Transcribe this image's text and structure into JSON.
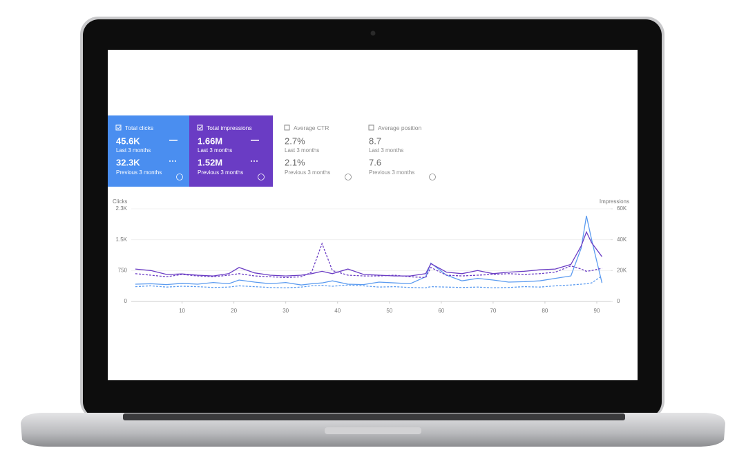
{
  "cards": [
    {
      "label": "Total clicks",
      "current": "45.6K",
      "current_label": "Last 3 months",
      "previous": "32.3K",
      "previous_label": "Previous 3 months"
    },
    {
      "label": "Total impressions",
      "current": "1.66M",
      "current_label": "Last 3 months",
      "previous": "1.52M",
      "previous_label": "Previous 3 months"
    },
    {
      "label": "Average CTR",
      "current": "2.7%",
      "current_label": "Last 3 months",
      "previous": "2.1%",
      "previous_label": "Previous 3 months"
    },
    {
      "label": "Average position",
      "current": "8.7",
      "current_label": "Last 3 months",
      "previous": "7.6",
      "previous_label": "Previous 3 months"
    }
  ],
  "chart_data": {
    "type": "line",
    "y_label": "Clicks",
    "y2_label": "Impressions",
    "x": [
      1,
      4,
      7,
      10,
      13,
      16,
      19,
      21,
      24,
      27,
      30,
      33,
      35,
      37,
      39,
      42,
      45,
      48,
      51,
      54,
      57,
      58,
      61,
      64,
      67,
      70,
      73,
      76,
      79,
      82,
      85,
      87,
      88,
      89,
      91
    ],
    "xlim": [
      1,
      92
    ],
    "xticks": [
      10,
      20,
      30,
      40,
      50,
      60,
      70,
      80,
      90
    ],
    "ylim": [
      0,
      2250
    ],
    "yticks": [
      0,
      750,
      {
        "value": 1500,
        "label": "1.5K"
      },
      {
        "value": 2250,
        "label": "2.3K"
      }
    ],
    "y2lim": [
      0,
      60000
    ],
    "y2ticks": [
      0,
      {
        "value": 20000,
        "label": "20K"
      },
      {
        "value": 40000,
        "label": "40K"
      },
      {
        "value": 60000,
        "label": "60K"
      }
    ],
    "grid": true,
    "series": [
      {
        "color": "#5b9bf0",
        "dashed": false,
        "values": [
          420,
          430,
          410,
          440,
          420,
          460,
          430,
          520,
          470,
          430,
          460,
          400,
          430,
          450,
          500,
          420,
          410,
          470,
          450,
          430,
          600,
          930,
          640,
          500,
          560,
          520,
          470,
          480,
          500,
          560,
          620,
          1300,
          2080,
          1500,
          450
        ]
      },
      {
        "color": "#5b9bf0",
        "dashed": true,
        "values": [
          360,
          380,
          350,
          370,
          360,
          340,
          350,
          380,
          360,
          340,
          330,
          350,
          380,
          390,
          370,
          400,
          380,
          350,
          360,
          340,
          330,
          360,
          350,
          340,
          350,
          330,
          340,
          360,
          350,
          380,
          400,
          420,
          430,
          450,
          620
        ]
      },
      {
        "color": "#6a3cc4",
        "dashed": false,
        "axis": "y2",
        "values": [
          21000,
          20000,
          17500,
          17800,
          17000,
          16500,
          18000,
          22000,
          18500,
          17000,
          16500,
          17000,
          18000,
          19500,
          18000,
          21000,
          17500,
          17000,
          16500,
          16500,
          18000,
          24500,
          19000,
          18000,
          20000,
          18000,
          19000,
          19500,
          20500,
          21000,
          24000,
          36000,
          45000,
          38000,
          29000
        ]
      },
      {
        "color": "#6a3cc4",
        "dashed": true,
        "axis": "y2",
        "values": [
          18000,
          17000,
          16000,
          17500,
          16500,
          16000,
          17000,
          18000,
          16500,
          16000,
          15500,
          16000,
          19000,
          37500,
          20000,
          17000,
          16500,
          16500,
          17000,
          16000,
          15500,
          22000,
          17000,
          16500,
          17000,
          17500,
          18000,
          17500,
          18000,
          19000,
          23000,
          21000,
          19500,
          20000,
          21500
        ]
      }
    ]
  }
}
